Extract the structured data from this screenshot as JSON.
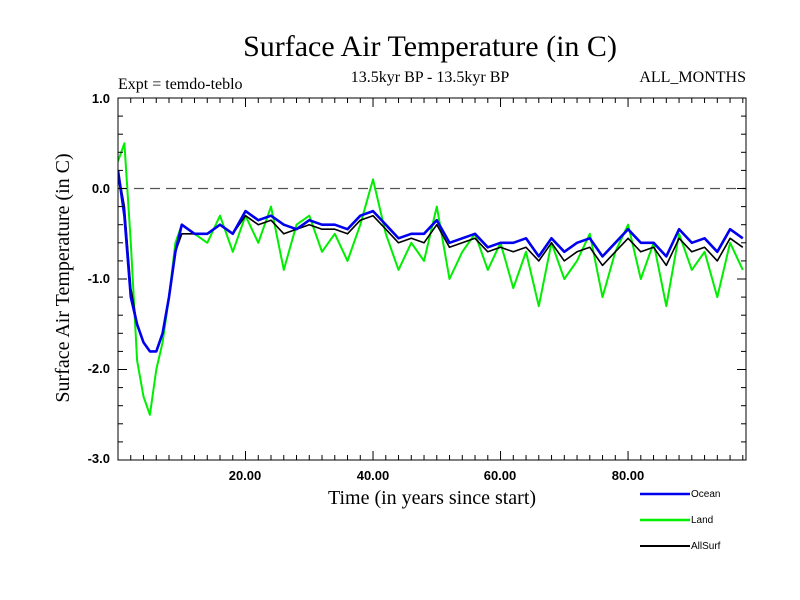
{
  "chart_data": {
    "type": "line",
    "title": "Surface Air Temperature (in C)",
    "subtitle": "13.5kyr BP - 13.5kyr BP",
    "annotation_left": "Expt = temdo-teblo",
    "annotation_right": "ALL_MONTHS",
    "xlabel": "Time (in years since start)",
    "ylabel": "Surface Air Temperature (in C)",
    "xlim": [
      0,
      98.5
    ],
    "ylim": [
      -3.0,
      1.0
    ],
    "x_ticks": [
      20,
      40,
      60,
      80
    ],
    "x_tick_labels": [
      "20.00",
      "40.00",
      "60.00",
      "80.00"
    ],
    "y_ticks": [
      1.0,
      0.0,
      -1.0,
      -2.0,
      -3.0
    ],
    "y_tick_labels": [
      "1.0",
      "0.0",
      "-1.0",
      "-2.0",
      "-3.0"
    ],
    "reference_line": {
      "y": 0.0,
      "style": "dashed"
    },
    "legend_position": "bottom-right",
    "series": [
      {
        "name": "Land",
        "color": "#00ee00",
        "x": [
          0,
          1,
          2,
          3,
          4,
          5,
          6,
          7,
          8,
          9,
          10,
          12,
          14,
          16,
          18,
          20,
          22,
          24,
          26,
          28,
          30,
          32,
          34,
          36,
          38,
          40,
          42,
          44,
          46,
          48,
          50,
          52,
          54,
          56,
          58,
          60,
          62,
          64,
          66,
          68,
          70,
          72,
          74,
          76,
          78,
          80,
          82,
          84,
          86,
          88,
          90,
          92,
          94,
          96,
          98
        ],
        "values": [
          0.3,
          0.5,
          -0.6,
          -1.9,
          -2.3,
          -2.5,
          -2.0,
          -1.7,
          -1.2,
          -0.6,
          -0.4,
          -0.5,
          -0.6,
          -0.3,
          -0.7,
          -0.3,
          -0.6,
          -0.2,
          -0.9,
          -0.4,
          -0.3,
          -0.7,
          -0.5,
          -0.8,
          -0.4,
          0.1,
          -0.5,
          -0.9,
          -0.6,
          -0.8,
          -0.2,
          -1.0,
          -0.7,
          -0.5,
          -0.9,
          -0.6,
          -1.1,
          -0.7,
          -1.3,
          -0.6,
          -1.0,
          -0.8,
          -0.5,
          -1.2,
          -0.7,
          -0.4,
          -1.0,
          -0.6,
          -1.3,
          -0.5,
          -0.9,
          -0.7,
          -1.2,
          -0.6,
          -0.9
        ]
      },
      {
        "name": "AllSurf",
        "color": "#000000",
        "x": [
          0,
          1,
          2,
          3,
          4,
          5,
          6,
          7,
          8,
          9,
          10,
          12,
          14,
          16,
          18,
          20,
          22,
          24,
          26,
          28,
          30,
          32,
          34,
          36,
          38,
          40,
          42,
          44,
          46,
          48,
          50,
          52,
          54,
          56,
          58,
          60,
          62,
          64,
          66,
          68,
          70,
          72,
          74,
          76,
          78,
          80,
          82,
          84,
          86,
          88,
          90,
          92,
          94,
          96,
          98
        ],
        "values": [
          0.2,
          -0.2,
          -1.1,
          -1.5,
          -1.7,
          -1.8,
          -1.8,
          -1.6,
          -1.2,
          -0.7,
          -0.5,
          -0.5,
          -0.5,
          -0.4,
          -0.5,
          -0.3,
          -0.4,
          -0.35,
          -0.5,
          -0.45,
          -0.4,
          -0.45,
          -0.45,
          -0.5,
          -0.35,
          -0.3,
          -0.45,
          -0.6,
          -0.55,
          -0.6,
          -0.4,
          -0.65,
          -0.6,
          -0.55,
          -0.7,
          -0.65,
          -0.7,
          -0.65,
          -0.8,
          -0.6,
          -0.8,
          -0.7,
          -0.65,
          -0.85,
          -0.7,
          -0.55,
          -0.7,
          -0.65,
          -0.85,
          -0.55,
          -0.7,
          -0.65,
          -0.8,
          -0.55,
          -0.65
        ]
      },
      {
        "name": "Ocean",
        "color": "#0000ee",
        "x": [
          0,
          1,
          2,
          3,
          4,
          5,
          6,
          7,
          8,
          9,
          10,
          12,
          14,
          16,
          18,
          20,
          22,
          24,
          26,
          28,
          30,
          32,
          34,
          36,
          38,
          40,
          42,
          44,
          46,
          48,
          50,
          52,
          54,
          56,
          58,
          60,
          62,
          64,
          66,
          68,
          70,
          72,
          74,
          76,
          78,
          80,
          82,
          84,
          86,
          88,
          90,
          92,
          94,
          96,
          98
        ],
        "values": [
          0.2,
          -0.3,
          -1.2,
          -1.5,
          -1.7,
          -1.8,
          -1.8,
          -1.6,
          -1.2,
          -0.7,
          -0.4,
          -0.5,
          -0.5,
          -0.4,
          -0.5,
          -0.25,
          -0.35,
          -0.3,
          -0.4,
          -0.45,
          -0.35,
          -0.4,
          -0.4,
          -0.45,
          -0.3,
          -0.25,
          -0.4,
          -0.55,
          -0.5,
          -0.5,
          -0.35,
          -0.6,
          -0.55,
          -0.5,
          -0.65,
          -0.6,
          -0.6,
          -0.55,
          -0.75,
          -0.55,
          -0.7,
          -0.6,
          -0.55,
          -0.75,
          -0.6,
          -0.45,
          -0.6,
          -0.6,
          -0.75,
          -0.45,
          -0.6,
          -0.55,
          -0.7,
          -0.45,
          -0.55
        ]
      }
    ]
  }
}
